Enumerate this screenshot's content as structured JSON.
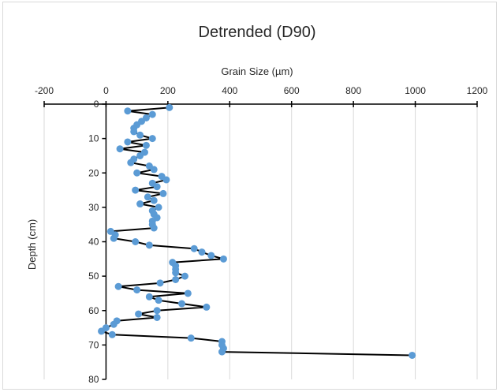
{
  "chart_data": {
    "type": "scatter",
    "title": "Detrended (D90)",
    "xlabel": "Grain Size (µm)",
    "ylabel": "Depth (cm)",
    "xlim": [
      -200,
      1200
    ],
    "ylim": [
      0,
      80
    ],
    "y_reversed": true,
    "x_ticks": [
      "-200",
      "0",
      "200",
      "400",
      "600",
      "800",
      "1000",
      "1200"
    ],
    "y_ticks": [
      "0",
      "10",
      "20",
      "30",
      "40",
      "50",
      "60",
      "70",
      "80"
    ],
    "x_axis_position": "top",
    "grid": "vertical",
    "legend": "none",
    "series_color": "#5b9bd5",
    "line_color": "#000000",
    "series": [
      {
        "points": [
          [
            205,
            1
          ],
          [
            70,
            2
          ],
          [
            150,
            3
          ],
          [
            130,
            4
          ],
          [
            115,
            5
          ],
          [
            100,
            6
          ],
          [
            90,
            7
          ],
          [
            90,
            8
          ],
          [
            110,
            9
          ],
          [
            150,
            10
          ],
          [
            70,
            11
          ],
          [
            130,
            12
          ],
          [
            45,
            13
          ],
          [
            125,
            14
          ],
          [
            110,
            15
          ],
          [
            90,
            16
          ],
          [
            80,
            17
          ],
          [
            140,
            18
          ],
          [
            155,
            19
          ],
          [
            100,
            20
          ],
          [
            180,
            21
          ],
          [
            195,
            22
          ],
          [
            150,
            23
          ],
          [
            165,
            24
          ],
          [
            95,
            25
          ],
          [
            185,
            26
          ],
          [
            135,
            27
          ],
          [
            155,
            28
          ],
          [
            110,
            29
          ],
          [
            170,
            30
          ],
          [
            150,
            31
          ],
          [
            155,
            32
          ],
          [
            165,
            33
          ],
          [
            150,
            34
          ],
          [
            150,
            35
          ],
          [
            155,
            36
          ],
          [
            15,
            37
          ],
          [
            30,
            38
          ],
          [
            25,
            39
          ],
          [
            95,
            40
          ],
          [
            140,
            41
          ],
          [
            285,
            42
          ],
          [
            310,
            43
          ],
          [
            340,
            44
          ],
          [
            380,
            45
          ],
          [
            215,
            46
          ],
          [
            225,
            47
          ],
          [
            225,
            48
          ],
          [
            225,
            49
          ],
          [
            255,
            50
          ],
          [
            225,
            51
          ],
          [
            175,
            52
          ],
          [
            40,
            53
          ],
          [
            100,
            54
          ],
          [
            265,
            55
          ],
          [
            140,
            56
          ],
          [
            170,
            57
          ],
          [
            245,
            58
          ],
          [
            325,
            59
          ],
          [
            165,
            60
          ],
          [
            105,
            61
          ],
          [
            165,
            62
          ],
          [
            35,
            63
          ],
          [
            25,
            64
          ],
          [
            0,
            65
          ],
          [
            -15,
            66
          ],
          [
            20,
            67
          ],
          [
            275,
            68
          ],
          [
            375,
            69
          ],
          [
            375,
            70
          ],
          [
            380,
            71
          ],
          [
            375,
            72
          ],
          [
            990,
            73
          ]
        ]
      }
    ]
  }
}
